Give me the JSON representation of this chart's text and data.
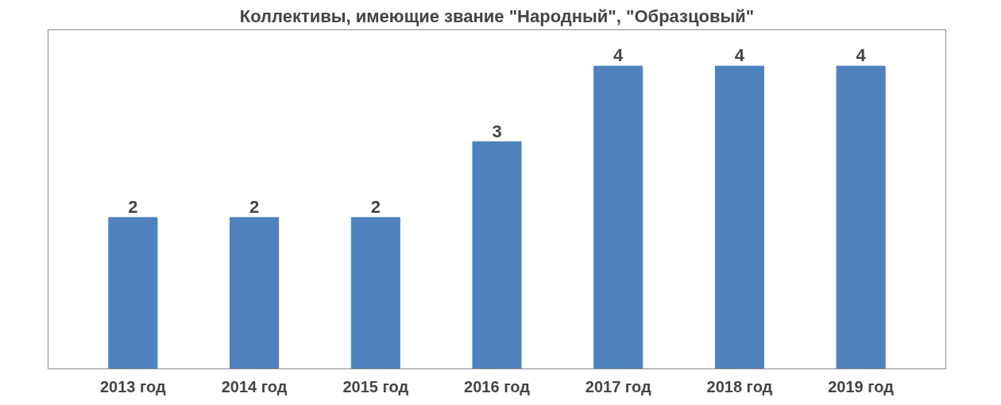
{
  "chart_data": {
    "type": "bar",
    "title": "Коллективы, имеющие звание \"Народный\", \"Образцовый\"",
    "categories": [
      "2013 год",
      "2014 год",
      "2015 год",
      "2016 год",
      "2017 год",
      "2018 год",
      "2019 год"
    ],
    "values": [
      2,
      2,
      2,
      3,
      4,
      4,
      4
    ],
    "color": "#4f81bd",
    "data_labels": true,
    "grid": false
  }
}
